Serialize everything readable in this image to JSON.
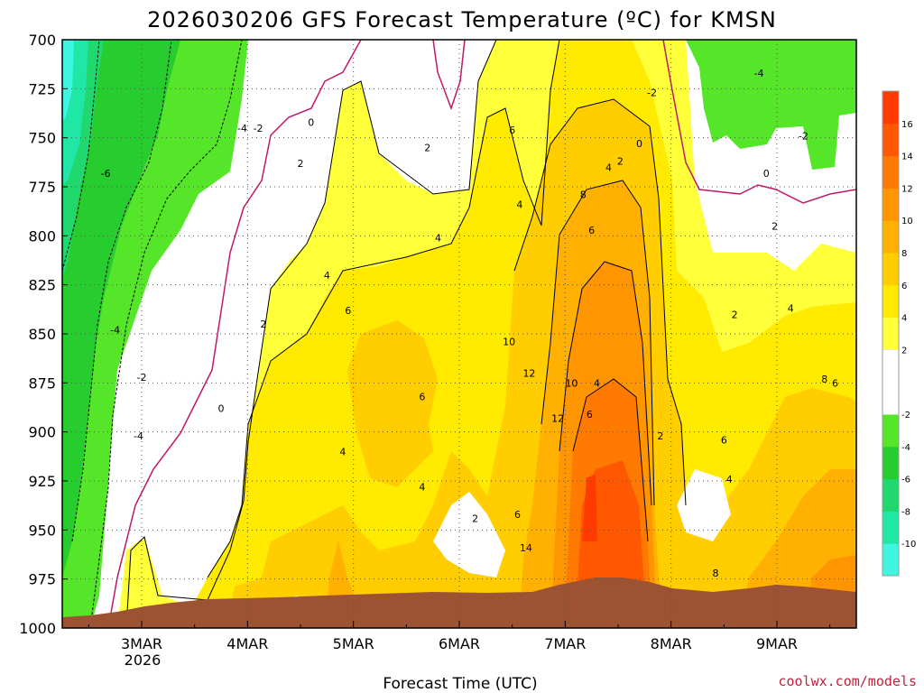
{
  "chart_data": {
    "type": "heatmap",
    "title": "2026030206 GFS Forecast Temperature (ºC) for KMSN",
    "xlabel": "Forecast Time (UTC)",
    "ylabel": "",
    "y_ticks": [
      "700",
      "725",
      "750",
      "775",
      "800",
      "825",
      "850",
      "875",
      "900",
      "925",
      "950",
      "975",
      "1000"
    ],
    "y_range_hpa": [
      700,
      1000
    ],
    "x_ticks": [
      "3MAR",
      "4MAR",
      "5MAR",
      "6MAR",
      "7MAR",
      "8MAR",
      "9MAR"
    ],
    "x_year_label": "2026",
    "colorbar": {
      "colors": [
        "#3ff5df",
        "#20e6a6",
        "#20d86e",
        "#27cc2e",
        "#55e62a",
        "#ffffff",
        "#ffffff",
        "#ffff3a",
        "#ffea00",
        "#ffcd00",
        "#ffb000",
        "#ff9500",
        "#ff7a00",
        "#ff5800",
        "#ff3b00"
      ],
      "tick_labels": [
        "-10",
        "-8",
        "-6",
        "-4",
        "-2",
        "2",
        "4",
        "6",
        "8",
        "10",
        "12",
        "14",
        "16"
      ]
    },
    "contour_labels": [
      {
        "value": "-6",
        "x": 2.66,
        "hpa": 768
      },
      {
        "value": "-4",
        "x": 2.75,
        "hpa": 848
      },
      {
        "value": "-2",
        "x": 3.0,
        "hpa": 872
      },
      {
        "value": "-4",
        "x": 2.97,
        "hpa": 902
      },
      {
        "value": "-4",
        "x": 3.95,
        "hpa": 745
      },
      {
        "value": "-2",
        "x": 4.1,
        "hpa": 745
      },
      {
        "value": "0",
        "x": 3.75,
        "hpa": 888
      },
      {
        "value": "0",
        "x": 4.6,
        "hpa": 742
      },
      {
        "value": "2",
        "x": 4.5,
        "hpa": 763
      },
      {
        "value": "2",
        "x": 4.15,
        "hpa": 845
      },
      {
        "value": "4",
        "x": 4.75,
        "hpa": 820
      },
      {
        "value": "6",
        "x": 4.95,
        "hpa": 838
      },
      {
        "value": "4",
        "x": 4.9,
        "hpa": 910
      },
      {
        "value": "2",
        "x": 5.7,
        "hpa": 755
      },
      {
        "value": "4",
        "x": 5.8,
        "hpa": 801
      },
      {
        "value": "6",
        "x": 5.65,
        "hpa": 882
      },
      {
        "value": "4",
        "x": 5.65,
        "hpa": 928
      },
      {
        "value": "2",
        "x": 6.15,
        "hpa": 944
      },
      {
        "value": "6",
        "x": 6.55,
        "hpa": 942
      },
      {
        "value": "4",
        "x": 6.57,
        "hpa": 784
      },
      {
        "value": "6",
        "x": 6.5,
        "hpa": 746
      },
      {
        "value": "10",
        "x": 6.47,
        "hpa": 854
      },
      {
        "value": "12",
        "x": 6.66,
        "hpa": 870
      },
      {
        "value": "14",
        "x": 6.63,
        "hpa": 959
      },
      {
        "value": "12",
        "x": 6.93,
        "hpa": 893
      },
      {
        "value": "10",
        "x": 7.06,
        "hpa": 875
      },
      {
        "value": "8",
        "x": 7.17,
        "hpa": 779
      },
      {
        "value": "6",
        "x": 7.25,
        "hpa": 797
      },
      {
        "value": "6",
        "x": 7.23,
        "hpa": 891
      },
      {
        "value": "4",
        "x": 7.3,
        "hpa": 875
      },
      {
        "value": "4",
        "x": 7.41,
        "hpa": 765
      },
      {
        "value": "2",
        "x": 7.52,
        "hpa": 762
      },
      {
        "value": "0",
        "x": 7.7,
        "hpa": 753
      },
      {
        "value": "-2",
        "x": 7.82,
        "hpa": 727
      },
      {
        "value": "2",
        "x": 7.9,
        "hpa": 902
      },
      {
        "value": "2",
        "x": 8.6,
        "hpa": 840
      },
      {
        "value": "4",
        "x": 8.55,
        "hpa": 924
      },
      {
        "value": "6",
        "x": 8.5,
        "hpa": 904
      },
      {
        "value": "8",
        "x": 8.42,
        "hpa": 972
      },
      {
        "value": "2",
        "x": 8.98,
        "hpa": 795
      },
      {
        "value": "4",
        "x": 9.13,
        "hpa": 837
      },
      {
        "value": "-4",
        "x": 8.83,
        "hpa": 717
      },
      {
        "value": "-2",
        "x": 9.25,
        "hpa": 749
      },
      {
        "value": "0",
        "x": 8.9,
        "hpa": 768
      },
      {
        "value": "8",
        "x": 9.45,
        "hpa": 873
      },
      {
        "value": "6",
        "x": 9.55,
        "hpa": 875
      }
    ]
  },
  "credit": "coolwx.com/models"
}
